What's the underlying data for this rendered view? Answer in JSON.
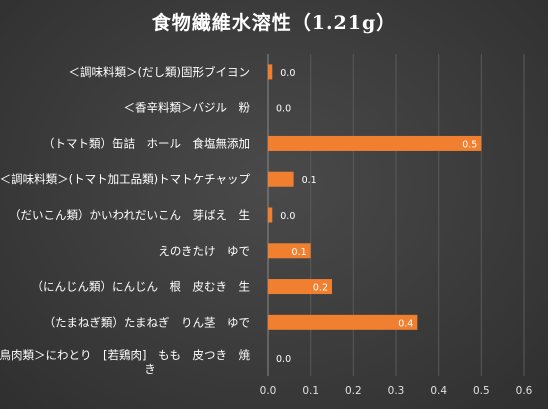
{
  "chart_data": {
    "type": "bar",
    "orientation": "horizontal",
    "title": "食物繊維水溶性（1.21g）",
    "categories": [
      "＜調味料類＞(だし類)固形ブイヨン",
      "＜香辛料類＞バジル　粉",
      "（トマト類）缶詰　ホール　食塩無添加",
      "＜調味料類＞(トマト加工品類)トマトケチャップ",
      "（だいこん類）かいわれだいこん　芽ばえ　生",
      "えのきたけ　ゆで",
      "（にんじん類）にんじん　根　皮むき　生",
      "（たまねぎ類）たまねぎ　りん茎　ゆで",
      "＜鳥肉類＞にわとり　[若鶏肉]　もも　皮つき　焼き"
    ],
    "values": [
      0.01,
      0.0,
      0.5,
      0.06,
      0.01,
      0.1,
      0.15,
      0.35,
      0.0
    ],
    "data_labels": [
      "0.0",
      "0.0",
      "0.5",
      "0.1",
      "0.0",
      "0.1",
      "0.2",
      "0.4",
      "0.0"
    ],
    "xlim": [
      0,
      0.6
    ],
    "xticks": [
      "0.0",
      "0.1",
      "0.2",
      "0.3",
      "0.4",
      "0.5",
      "0.6"
    ],
    "xlabel": "",
    "ylabel": "",
    "grid": true,
    "legend": "none",
    "bar_color": "#f07f2f"
  }
}
